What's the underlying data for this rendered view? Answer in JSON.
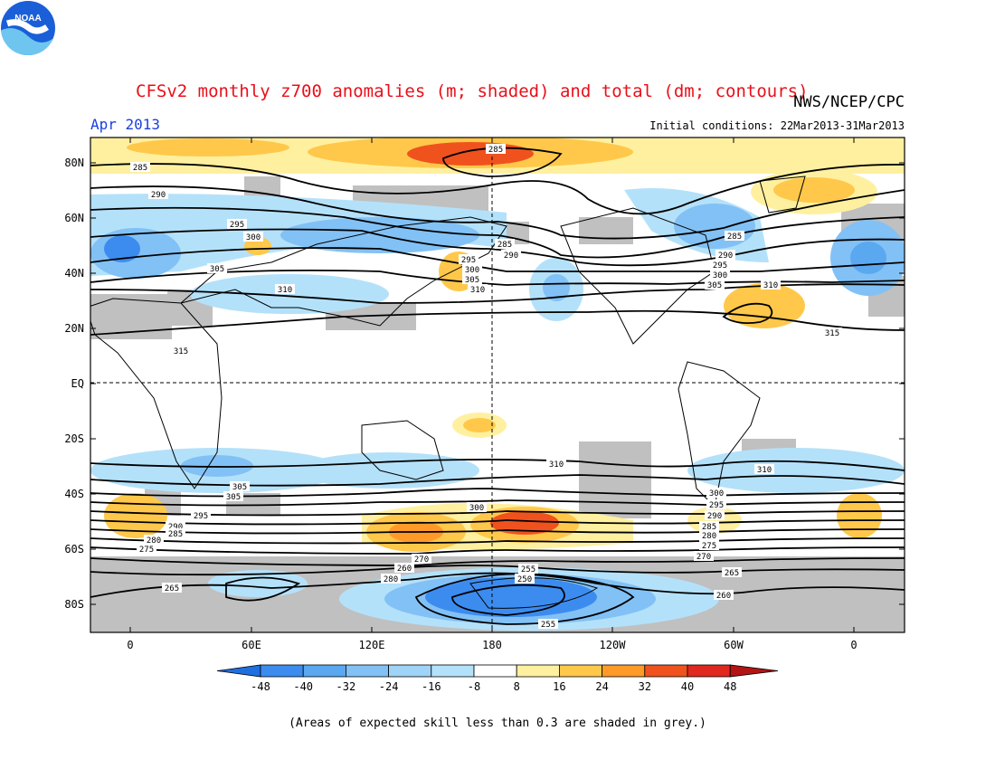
{
  "header": {
    "title": "CFSv2 monthly z700 anomalies (m; shaded) and total (dm; contours)",
    "agency": "NWS/NCEP/CPC",
    "month": "Apr 2013",
    "initial_conditions": "Initial conditions: 22Mar2013-31Mar2013"
  },
  "logo": {
    "icon": "noaa-logo-icon",
    "text": "NOAA"
  },
  "map": {
    "lat_labels": [
      "80N",
      "60N",
      "40N",
      "20N",
      "EQ",
      "20S",
      "40S",
      "60S",
      "80S"
    ],
    "lon_labels": [
      "0",
      "60E",
      "120E",
      "180",
      "120W",
      "60W",
      "0"
    ],
    "contour_labels": [
      "285",
      "290",
      "295",
      "300",
      "305",
      "310",
      "315",
      "285",
      "285",
      "290",
      "295",
      "300",
      "305",
      "310",
      "315",
      "285",
      "290",
      "295",
      "300",
      "305",
      "310",
      "310",
      "310",
      "305",
      "300",
      "295",
      "290",
      "285",
      "280",
      "275",
      "270",
      "260",
      "255",
      "250",
      "265",
      "260",
      "255",
      "280",
      "300",
      "305",
      "295",
      "290",
      "285",
      "280",
      "275",
      "270",
      "265",
      "260"
    ],
    "colors": {
      "anom_neg_48": "#1e6fe0",
      "anom_neg_40": "#3c8cf0",
      "anom_neg_24": "#82c1f5",
      "anom_neg_16": "#b4e1fa",
      "anom_pos_8": "#fff0a0",
      "anom_pos_16": "#ffc84a",
      "anom_pos_24": "#ff9a28",
      "anom_pos_32": "#f0521e",
      "anom_pos_40": "#e0281e",
      "anom_pos_48": "#b41414",
      "low_skill_grey": "#c0c0c0"
    }
  },
  "colorbar": {
    "labels": [
      "-48",
      "-40",
      "-32",
      "-24",
      "-16",
      "-8",
      "8",
      "16",
      "24",
      "32",
      "40",
      "48"
    ],
    "colors": [
      "#1e6fe0",
      "#3c8cf0",
      "#5aa8f0",
      "#82c1f5",
      "#b4e1fa",
      "#ffffff",
      "#fff0a0",
      "#ffc84a",
      "#ff9a28",
      "#f0521e",
      "#e0281e",
      "#b41414"
    ]
  },
  "footer": {
    "note": "(Areas of expected skill less than 0.3 are shaded in grey.)"
  }
}
